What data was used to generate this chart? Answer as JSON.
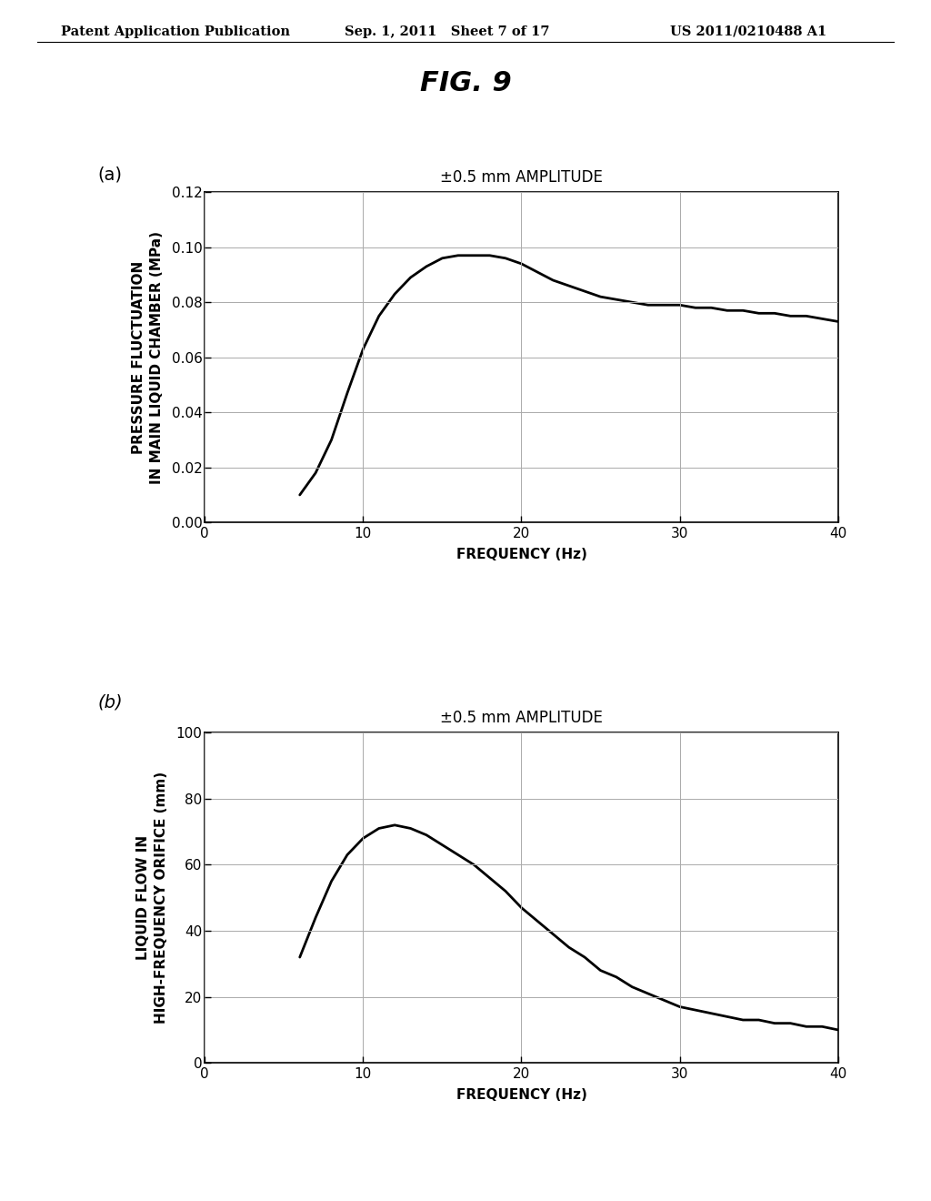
{
  "fig_title": "FIG. 9",
  "header_left": "Patent Application Publication",
  "header_mid": "Sep. 1, 2011   Sheet 7 of 17",
  "header_right": "US 2011/0210488 A1",
  "plot_a": {
    "label": "(a)",
    "title": "±0.5 mm AMPLITUDE",
    "xlabel": "FREQUENCY (Hz)",
    "ylabel": "PRESSURE FLUCTUATION\nIN MAIN LIQUID CHAMBER (MPa)",
    "xlim": [
      0,
      40
    ],
    "ylim": [
      0,
      0.12
    ],
    "xticks": [
      0,
      10,
      20,
      30,
      40
    ],
    "yticks": [
      0,
      0.02,
      0.04,
      0.06,
      0.08,
      0.1,
      0.12
    ],
    "curve_x": [
      6.0,
      7.0,
      8.0,
      9.0,
      10.0,
      11.0,
      12.0,
      13.0,
      14.0,
      15.0,
      16.0,
      17.0,
      18.0,
      19.0,
      20.0,
      21.0,
      22.0,
      23.0,
      24.0,
      25.0,
      26.0,
      27.0,
      28.0,
      29.0,
      30.0,
      31.0,
      32.0,
      33.0,
      34.0,
      35.0,
      36.0,
      37.0,
      38.0,
      39.0,
      40.0
    ],
    "curve_y": [
      0.01,
      0.018,
      0.03,
      0.047,
      0.063,
      0.075,
      0.083,
      0.089,
      0.093,
      0.096,
      0.097,
      0.097,
      0.097,
      0.096,
      0.094,
      0.091,
      0.088,
      0.086,
      0.084,
      0.082,
      0.081,
      0.08,
      0.079,
      0.079,
      0.079,
      0.078,
      0.078,
      0.077,
      0.077,
      0.076,
      0.076,
      0.075,
      0.075,
      0.074,
      0.073
    ]
  },
  "plot_b": {
    "label": "(b)",
    "title": "±0.5 mm AMPLITUDE",
    "xlabel": "FREQUENCY (Hz)",
    "ylabel": "LIQUID FLOW IN\nHIGH-FREQUENCY ORIFICE (mm)",
    "xlim": [
      0,
      40
    ],
    "ylim": [
      0,
      100
    ],
    "xticks": [
      0,
      10,
      20,
      30,
      40
    ],
    "yticks": [
      0,
      20,
      40,
      60,
      80,
      100
    ],
    "curve_x": [
      6.0,
      7.0,
      8.0,
      9.0,
      10.0,
      11.0,
      12.0,
      13.0,
      14.0,
      15.0,
      16.0,
      17.0,
      18.0,
      19.0,
      20.0,
      21.0,
      22.0,
      23.0,
      24.0,
      25.0,
      26.0,
      27.0,
      28.0,
      29.0,
      30.0,
      31.0,
      32.0,
      33.0,
      34.0,
      35.0,
      36.0,
      37.0,
      38.0,
      39.0,
      40.0
    ],
    "curve_y": [
      32,
      44,
      55,
      63,
      68,
      71,
      72,
      71,
      69,
      66,
      63,
      60,
      56,
      52,
      47,
      43,
      39,
      35,
      32,
      28,
      26,
      23,
      21,
      19,
      17,
      16,
      15,
      14,
      13,
      13,
      12,
      12,
      11,
      11,
      10
    ]
  },
  "background_color": "#ffffff",
  "line_color": "#000000",
  "grid_color": "#aaaaaa",
  "font_size_header": 10.5,
  "font_size_fig_title": 22,
  "font_size_plot_title": 12,
  "font_size_axis_label": 11,
  "font_size_tick": 11,
  "font_size_panel_label": 14,
  "line_width": 2.0
}
